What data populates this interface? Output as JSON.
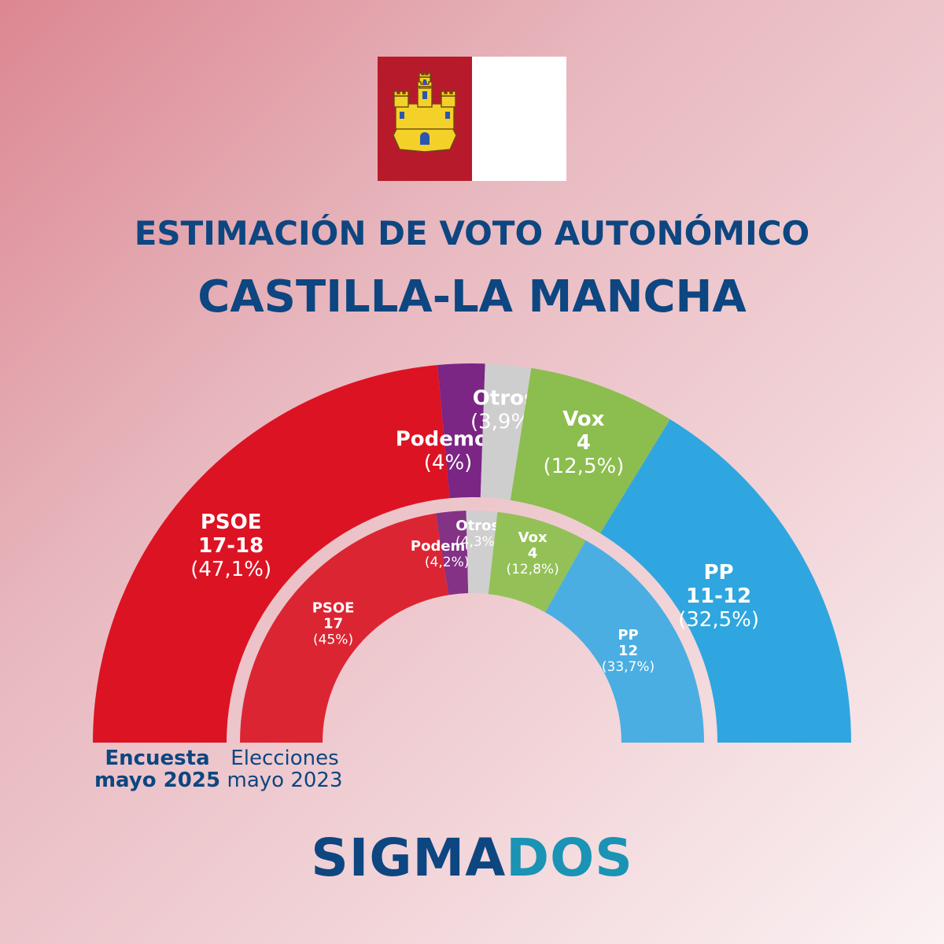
{
  "title_line1": "ESTIMACIÓN DE VOTO AUTONÓMICO",
  "title_line2": "CASTILLA-LA MANCHA",
  "brand": {
    "part1": "SIGMA",
    "part2": "DOS"
  },
  "colors": {
    "title": "#0d4680",
    "flag_red": "#b71a2b",
    "flag_white": "#ffffff",
    "castle": "#f3d129",
    "brand_accent": "#1a93b4"
  },
  "chart_data": [
    {
      "type": "pie",
      "subtype": "semicircle",
      "ring": "outer",
      "caption_lines": [
        "Encuesta",
        "mayo 2025"
      ],
      "series": [
        {
          "name": "PSOE",
          "seats": "17-18",
          "share_label": "(47,1%)",
          "value": 47.1,
          "color": "#dc1323"
        },
        {
          "name": "Podemos",
          "seats": "",
          "share_label": "(4%)",
          "value": 4.0,
          "color": "#7b2585"
        },
        {
          "name": "Otros",
          "seats": "",
          "share_label": "(3,9%)",
          "value": 3.9,
          "color": "#cecece"
        },
        {
          "name": "Vox",
          "seats": "4",
          "share_label": "(12,5%)",
          "value": 12.5,
          "color": "#8cbd4f"
        },
        {
          "name": "PP",
          "seats": "11-12",
          "share_label": "(32,5%)",
          "value": 32.5,
          "color": "#2fa6df"
        }
      ]
    },
    {
      "type": "pie",
      "subtype": "semicircle",
      "ring": "inner",
      "caption_lines": [
        "Elecciones",
        "mayo 2023"
      ],
      "series": [
        {
          "name": "PSOE",
          "seats": "17",
          "share_label": "(45%)",
          "value": 45.0,
          "color": "#dc2532"
        },
        {
          "name": "Podemos",
          "seats": "",
          "share_label": "(4,2%)",
          "value": 4.2,
          "color": "#833286"
        },
        {
          "name": "Otros",
          "seats": "",
          "share_label": "(4,3%)",
          "value": 4.3,
          "color": "#cfcfcf"
        },
        {
          "name": "Vox",
          "seats": "4",
          "share_label": "(12,8%)",
          "value": 12.8,
          "color": "#93c158"
        },
        {
          "name": "PP",
          "seats": "12",
          "share_label": "(33,7%)",
          "value": 33.7,
          "color": "#4aaee2"
        }
      ]
    }
  ]
}
